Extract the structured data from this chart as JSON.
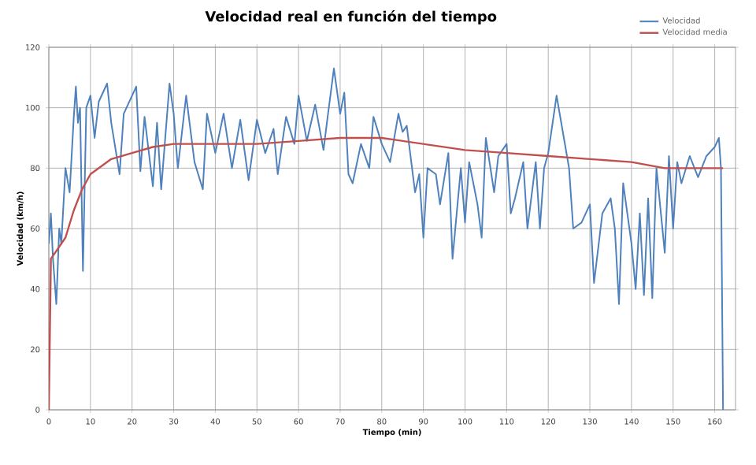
{
  "chart_data": {
    "type": "line",
    "title": "Velocidad real en función del tiempo",
    "xlabel": "Tiempo (min)",
    "ylabel": "Velocidad (km/h)",
    "xlim": [
      0,
      165
    ],
    "xticks": [
      0,
      10,
      20,
      30,
      40,
      50,
      60,
      70,
      80,
      90,
      100,
      110,
      120,
      130,
      140,
      150,
      160
    ],
    "ylim": [
      0,
      120
    ],
    "yticks": [
      0,
      20,
      40,
      60,
      80,
      100,
      120
    ],
    "grid": true,
    "legend": "top right",
    "marker": "none",
    "line_style": "solid",
    "series": [
      {
        "name": "Velocidad",
        "color": "#4f81bd",
        "x": [
          0,
          0.5,
          1,
          1.8,
          2.5,
          3,
          4,
          5,
          6,
          6.5,
          7,
          7.5,
          8.2,
          9,
          10,
          11,
          12,
          14,
          15,
          17,
          18,
          21,
          22,
          23,
          25,
          26,
          27,
          29,
          30,
          31,
          33,
          35,
          37,
          38,
          40,
          42,
          44,
          46,
          48,
          50,
          52,
          54,
          55,
          57,
          59,
          60,
          62,
          64,
          66,
          67,
          68.5,
          70,
          71,
          72,
          73,
          75,
          77,
          78,
          80,
          82,
          84,
          85,
          86,
          88,
          89,
          90,
          91,
          93,
          94,
          96,
          97,
          99,
          100,
          101,
          103,
          104,
          105,
          107,
          108,
          110,
          111,
          112,
          114,
          115,
          117,
          118,
          119,
          120,
          122,
          123,
          125,
          126,
          128,
          130,
          131,
          133,
          135,
          136,
          137,
          138,
          140,
          141,
          142,
          143,
          144,
          145,
          146,
          148,
          149,
          150,
          151,
          152,
          154,
          156,
          158,
          160,
          161,
          161.5,
          162
        ],
        "values": [
          55,
          65,
          50,
          35,
          60,
          55,
          80,
          72,
          97,
          107,
          95,
          100,
          46,
          100,
          104,
          90,
          102,
          108,
          95,
          78,
          98,
          107,
          79,
          97,
          74,
          95,
          73,
          108,
          98,
          80,
          104,
          82,
          73,
          98,
          85,
          98,
          80,
          96,
          76,
          96,
          85,
          93,
          78,
          97,
          88,
          104,
          89,
          101,
          86,
          97,
          113,
          98,
          105,
          78,
          75,
          88,
          80,
          97,
          88,
          82,
          98,
          92,
          94,
          72,
          78,
          57,
          80,
          78,
          68,
          85,
          50,
          80,
          62,
          82,
          68,
          57,
          90,
          72,
          84,
          88,
          65,
          70,
          82,
          60,
          82,
          60,
          80,
          85,
          104,
          96,
          80,
          60,
          62,
          68,
          42,
          65,
          70,
          60,
          35,
          75,
          55,
          40,
          65,
          38,
          70,
          37,
          80,
          52,
          84,
          60,
          82,
          75,
          84,
          77,
          84,
          87,
          90,
          80,
          0
        ]
      },
      {
        "name": "Velocidad media",
        "color": "#c0504d",
        "x": [
          0,
          0.5,
          2,
          4,
          6,
          8,
          10,
          15,
          20,
          25,
          30,
          40,
          50,
          60,
          70,
          80,
          90,
          100,
          110,
          120,
          130,
          140,
          148,
          155,
          162
        ],
        "values": [
          0,
          50,
          53,
          57,
          66,
          73,
          78,
          83,
          85,
          87,
          88,
          88,
          88,
          89,
          90,
          90,
          88,
          86,
          85,
          84,
          83,
          82,
          80,
          80,
          80
        ]
      }
    ]
  }
}
